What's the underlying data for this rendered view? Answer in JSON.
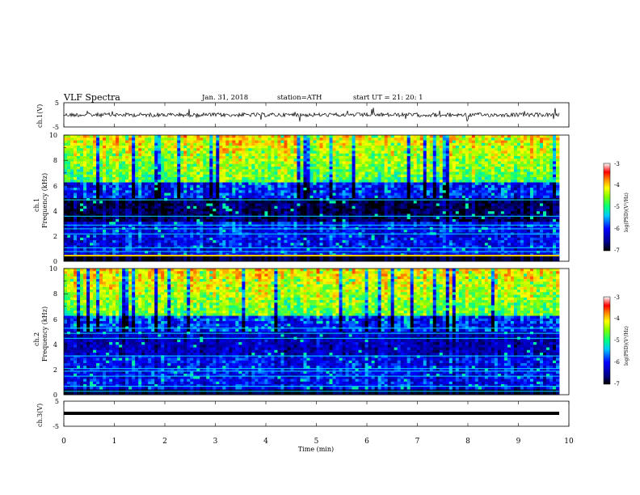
{
  "header": {
    "title": "VLF  Spectra",
    "date": "Jan. 31, 2018",
    "station": "station=ATH",
    "start": "start  UT  =   21: 20: 1"
  },
  "chart_data": [
    {
      "type": "line",
      "name": "ch1-waveform",
      "ylabel": "ch.1(V)",
      "ylim": [
        -5,
        5
      ],
      "y_ticks": [
        "5",
        "-5"
      ],
      "xlim": [
        0,
        10
      ],
      "approx_level": 0,
      "color": "#000000"
    },
    {
      "type": "heatmap",
      "name": "ch1-spectrogram",
      "ylabel": "ch.1\nFrequency  (kHz)",
      "ylim": [
        0,
        10
      ],
      "y_ticks": [
        "0",
        "2",
        "4",
        "6",
        "8",
        "10"
      ],
      "xlim": [
        0,
        9.82
      ],
      "colorbar": {
        "label": "log(PSD)(V²/Hz)",
        "range": [
          -7,
          -3
        ],
        "ticks": [
          "-3",
          "-4",
          "-5",
          "-6",
          "-7"
        ]
      }
    },
    {
      "type": "heatmap",
      "name": "ch2-spectrogram",
      "ylabel": "ch.2\nFrequency  (kHz)",
      "ylim": [
        0,
        10
      ],
      "y_ticks": [
        "0",
        "2",
        "4",
        "6",
        "8",
        "10"
      ],
      "xlim": [
        0,
        9.82
      ],
      "colorbar": {
        "label": "log(PSD)(V²/Hz)",
        "range": [
          -7,
          -3
        ],
        "ticks": [
          "-3",
          "-4",
          "-5",
          "-6",
          "-7"
        ]
      }
    },
    {
      "type": "line",
      "name": "ch3-waveform",
      "ylabel": "ch.3(V)",
      "ylim": [
        -5,
        5
      ],
      "y_ticks": [
        "5",
        "-5"
      ],
      "xlim": [
        0,
        10
      ],
      "approx_level": -0.2,
      "color": "#000000"
    }
  ],
  "x_axis": {
    "label": "Time  (min)",
    "ticks": [
      "0",
      "1",
      "2",
      "3",
      "4",
      "5",
      "6",
      "7",
      "8",
      "9",
      "10"
    ],
    "range": [
      0,
      10
    ]
  },
  "labels": {
    "ch1_v": "ch.1(V)",
    "ch3_v": "ch.3(V)",
    "ch1_freq_a": "ch.1",
    "ch1_freq_b": "Frequency  (kHz)",
    "ch2_freq_a": "ch.2",
    "ch2_freq_b": "Frequency  (kHz)",
    "cb1": "log(PSD)(V²/Hz)",
    "cb2": "log(PSD)(V²/Hz)"
  }
}
